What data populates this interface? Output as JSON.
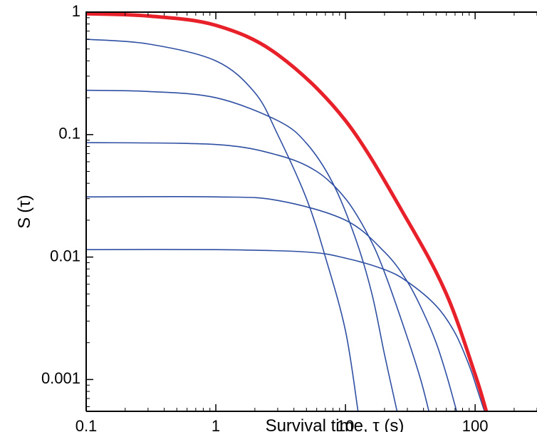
{
  "chart_data": {
    "type": "line",
    "title": "",
    "xlabel": "Survival time, τ (s)",
    "ylabel_main": "S",
    "ylabel_arg": "(τ)",
    "xscale": "log",
    "yscale": "log",
    "xlim": [
      0.1,
      300
    ],
    "ylim": [
      0.00055,
      1
    ],
    "grid": false,
    "legend": "none",
    "x_ticks": [
      0.1,
      1,
      10,
      100
    ],
    "x_tick_labels": [
      "0.1",
      "1",
      "10",
      "100"
    ],
    "y_ticks": [
      0.001,
      0.01,
      0.1,
      1
    ],
    "y_tick_labels": [
      "0.001",
      "0.01",
      "0.1",
      "1"
    ],
    "colors": {
      "total": "#e8202a",
      "components": "#2f4fa3"
    },
    "series": [
      {
        "role": "total",
        "x": [
          0.1,
          0.3,
          1,
          3,
          10,
          30,
          60,
          100,
          122
        ],
        "y": [
          0.97,
          0.93,
          0.78,
          0.45,
          0.13,
          0.02,
          0.005,
          0.0011,
          0.00055
        ]
      },
      {
        "role": "component",
        "x": [
          0.1,
          0.3,
          1,
          2,
          3,
          5,
          7,
          10,
          12.5
        ],
        "y": [
          0.6,
          0.55,
          0.4,
          0.22,
          0.1,
          0.03,
          0.01,
          0.0025,
          0.00055
        ]
      },
      {
        "role": "component",
        "x": [
          0.1,
          0.3,
          1,
          3,
          5,
          8,
          12,
          16,
          20,
          25
        ],
        "y": [
          0.23,
          0.225,
          0.2,
          0.13,
          0.085,
          0.04,
          0.014,
          0.005,
          0.0016,
          0.00055
        ]
      },
      {
        "role": "component",
        "x": [
          0.1,
          1,
          3,
          6,
          10,
          15,
          20,
          30,
          38,
          44
        ],
        "y": [
          0.086,
          0.083,
          0.068,
          0.05,
          0.03,
          0.015,
          0.0075,
          0.0022,
          0.001,
          0.00055
        ]
      },
      {
        "role": "component",
        "x": [
          0.1,
          1,
          3,
          10,
          20,
          30,
          40,
          50,
          60,
          72
        ],
        "y": [
          0.031,
          0.031,
          0.029,
          0.02,
          0.011,
          0.0063,
          0.0035,
          0.002,
          0.0011,
          0.00055
        ]
      },
      {
        "role": "component",
        "x": [
          0.1,
          1,
          5,
          10,
          20,
          30,
          50,
          70,
          90,
          105,
          118
        ],
        "y": [
          0.0115,
          0.0115,
          0.011,
          0.0098,
          0.0079,
          0.0063,
          0.004,
          0.0024,
          0.0013,
          0.0008,
          0.00055
        ]
      }
    ]
  }
}
